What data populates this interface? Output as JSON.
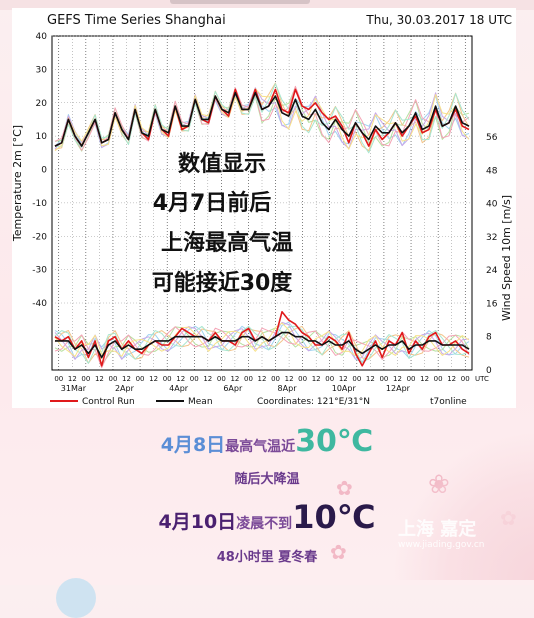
{
  "chart_data": {
    "type": "line",
    "title": "GEFS Time Series Shanghai",
    "run_time": "Thu, 30.03.2017  18 UTC",
    "ylabel_left": "Temperature 2m [°C]",
    "ylabel_right": "Wind Speed 10m [m/s]",
    "ylim_left": [
      -40,
      40
    ],
    "yticks_left": [
      40,
      30,
      20,
      10,
      0,
      -10,
      -20,
      -30,
      -40
    ],
    "ylim_right": [
      0,
      56
    ],
    "yticks_right": [
      56,
      48,
      40,
      32,
      24,
      16,
      8,
      0
    ],
    "x_hour_labels": [
      "00",
      "12",
      "00",
      "12",
      "00",
      "12",
      "00",
      "12",
      "00",
      "12",
      "00",
      "12",
      "00",
      "12",
      "00",
      "12",
      "00",
      "12",
      "00",
      "12",
      "00",
      "12",
      "00",
      "12",
      "00",
      "12",
      "00",
      "12",
      "00",
      "12",
      "00",
      "UTC"
    ],
    "x_date_labels": [
      "31Mar",
      "2Apr",
      "4Apr",
      "6Apr",
      "8Apr",
      "10Apr",
      "12Apr"
    ],
    "legend": [
      {
        "name": "Control Run",
        "color": "#e0191b"
      },
      {
        "name": "Mean",
        "color": "#111111"
      }
    ],
    "coordinates": "Coordinates: 121°E/31°N",
    "credit": "t7online",
    "grid": true,
    "series": [
      {
        "name": "Control Run",
        "kind": "temperature",
        "values": [
          7,
          8,
          15,
          10,
          7,
          11,
          15,
          8,
          9,
          17,
          12,
          9,
          18,
          11,
          9,
          18,
          12,
          10,
          19,
          12,
          13,
          21,
          15,
          14,
          22,
          18,
          16,
          24,
          18,
          18,
          24,
          18,
          19,
          24,
          18,
          17,
          24,
          19,
          18,
          20,
          17,
          15,
          16,
          13,
          8,
          14,
          11,
          7,
          12,
          9,
          11,
          14,
          10,
          13,
          16,
          11,
          12,
          18,
          13,
          14,
          18,
          13,
          12
        ]
      },
      {
        "name": "Mean",
        "kind": "temperature",
        "values": [
          7,
          8,
          15,
          10,
          7,
          11,
          15,
          8,
          9,
          17,
          12,
          9,
          18,
          11,
          10,
          18,
          12,
          11,
          19,
          13,
          13,
          21,
          15,
          15,
          22,
          18,
          17,
          23,
          18,
          18,
          23,
          18,
          19,
          22,
          17,
          16,
          21,
          16,
          15,
          18,
          14,
          12,
          15,
          12,
          10,
          14,
          11,
          9,
          13,
          11,
          11,
          14,
          11,
          13,
          17,
          12,
          13,
          19,
          13,
          14,
          19,
          14,
          13
        ]
      },
      {
        "name": "Control Run",
        "kind": "wind",
        "values": [
          8,
          7,
          8,
          5,
          7,
          3,
          7,
          1,
          7,
          8,
          5,
          7,
          5,
          4,
          6,
          7,
          6,
          6,
          8,
          10,
          9,
          8,
          8,
          7,
          9,
          7,
          7,
          6,
          9,
          10,
          7,
          8,
          7,
          8,
          14,
          12,
          11,
          9,
          8,
          6,
          6,
          8,
          7,
          5,
          9,
          4,
          1,
          4,
          7,
          3,
          7,
          6,
          9,
          4,
          7,
          5,
          8,
          9,
          6,
          6,
          7,
          5,
          4
        ]
      },
      {
        "name": "Mean",
        "kind": "wind",
        "values": [
          7,
          7,
          7,
          5,
          6,
          4,
          6,
          3,
          6,
          7,
          5,
          6,
          5,
          5,
          6,
          7,
          7,
          7,
          8,
          8,
          8,
          8,
          8,
          7,
          8,
          7,
          7,
          7,
          8,
          8,
          7,
          8,
          7,
          8,
          9,
          9,
          8,
          8,
          7,
          7,
          6,
          7,
          6,
          6,
          7,
          5,
          4,
          5,
          6,
          5,
          6,
          6,
          7,
          5,
          6,
          6,
          7,
          7,
          6,
          6,
          6,
          6,
          5
        ]
      }
    ],
    "annotation_lines": [
      "数值显示",
      "4月7日前后",
      "上海最高气温",
      "可能接近30度"
    ]
  },
  "captions": {
    "l1_date": "4月8日",
    "l1_text": "最高气温近",
    "l1_value": "30℃",
    "l2": "随后大降温",
    "l3_date": "4月10日",
    "l3_text": "凌晨不到",
    "l3_value": "10℃",
    "l4": "48小时里 夏冬春"
  },
  "watermark": {
    "name": "上海 嘉定",
    "url": "www.jiading.gov.cn"
  }
}
